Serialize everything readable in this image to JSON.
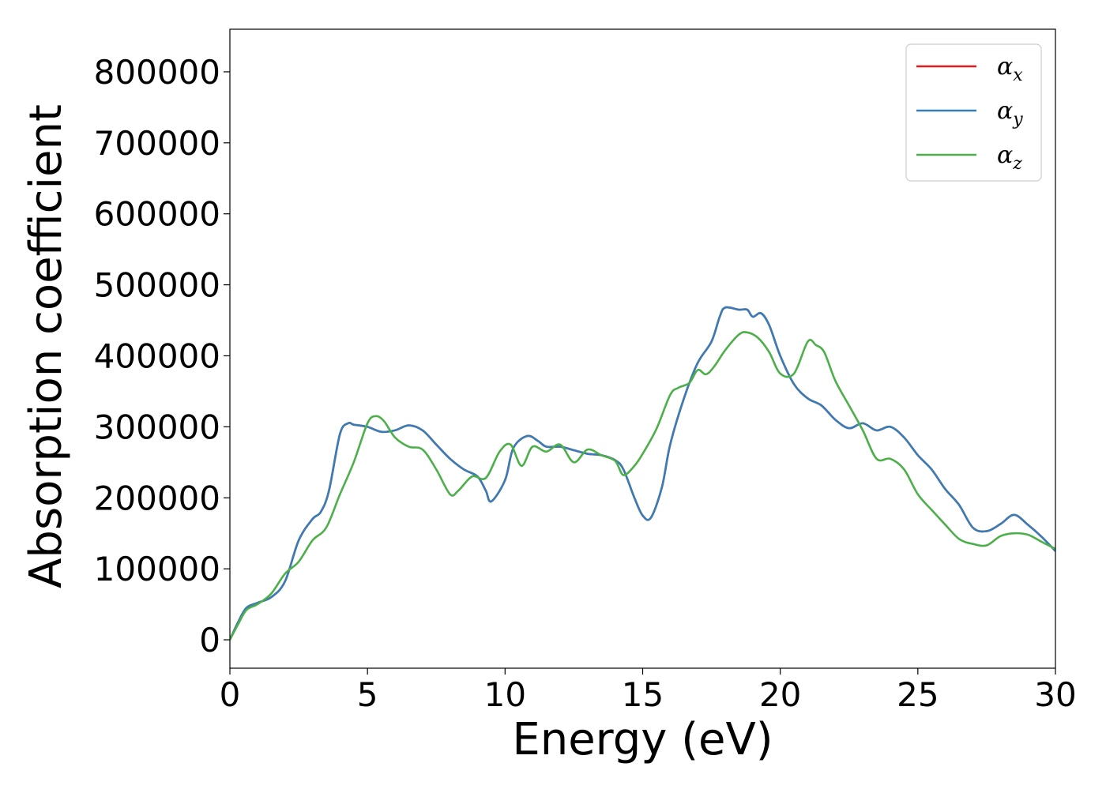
{
  "chart_data": {
    "type": "line",
    "title": "",
    "xlabel": "Energy (eV)",
    "ylabel": "Absorption coefficient",
    "xlim": [
      0,
      30
    ],
    "ylim": [
      -40000,
      860000
    ],
    "xticks": [
      0,
      5,
      10,
      15,
      20,
      25,
      30
    ],
    "yticks": [
      0,
      100000,
      200000,
      300000,
      400000,
      500000,
      600000,
      700000,
      800000
    ],
    "grid": false,
    "legend_position": "top-right",
    "series": [
      {
        "name": "α_x",
        "legend_main": "α",
        "legend_sub": "x",
        "color": "#e41a1c",
        "x": [
          0,
          0.3,
          0.6,
          1,
          1.5,
          2,
          2.5,
          3,
          3.3,
          3.6,
          4,
          4.3,
          4.5,
          5,
          5.5,
          6,
          6.5,
          7,
          7.5,
          8,
          8.5,
          9,
          9.3,
          9.5,
          10,
          10.3,
          10.8,
          11.2,
          11.5,
          12,
          12.5,
          13,
          13.5,
          14,
          14.3,
          14.7,
          15,
          15.3,
          15.7,
          16,
          16.5,
          17,
          17.5,
          17.8,
          18,
          18.5,
          18.8,
          19,
          19.3,
          19.6,
          20,
          20.5,
          21,
          21.5,
          22,
          22.5,
          23,
          23.5,
          24,
          24.5,
          25,
          25.5,
          26,
          26.5,
          27,
          27.5,
          28,
          28.5,
          29,
          29.5,
          30
        ],
        "y": [
          0,
          25000,
          45000,
          52000,
          60000,
          82000,
          140000,
          170000,
          180000,
          210000,
          290000,
          305000,
          303000,
          300000,
          293000,
          295000,
          302000,
          295000,
          275000,
          255000,
          240000,
          230000,
          210000,
          195000,
          225000,
          270000,
          287000,
          280000,
          272000,
          272000,
          267000,
          262000,
          260000,
          253000,
          240000,
          200000,
          175000,
          172000,
          215000,
          275000,
          340000,
          390000,
          420000,
          455000,
          468000,
          465000,
          465000,
          455000,
          460000,
          443000,
          400000,
          360000,
          340000,
          330000,
          310000,
          298000,
          305000,
          295000,
          300000,
          285000,
          260000,
          240000,
          212000,
          190000,
          158000,
          153000,
          163000,
          176000,
          162000,
          145000,
          125000
        ]
      },
      {
        "name": "α_y",
        "legend_main": "α",
        "legend_sub": "y",
        "color": "#377eb8",
        "x": [
          0,
          0.3,
          0.6,
          1,
          1.5,
          2,
          2.5,
          3,
          3.3,
          3.6,
          4,
          4.3,
          4.5,
          5,
          5.5,
          6,
          6.5,
          7,
          7.5,
          8,
          8.5,
          9,
          9.3,
          9.5,
          10,
          10.3,
          10.8,
          11.2,
          11.5,
          12,
          12.5,
          13,
          13.5,
          14,
          14.3,
          14.7,
          15,
          15.3,
          15.7,
          16,
          16.5,
          17,
          17.5,
          17.8,
          18,
          18.5,
          18.8,
          19,
          19.3,
          19.6,
          20,
          20.5,
          21,
          21.5,
          22,
          22.5,
          23,
          23.5,
          24,
          24.5,
          25,
          25.5,
          26,
          26.5,
          27,
          27.5,
          28,
          28.5,
          29,
          29.5,
          30
        ],
        "y": [
          0,
          25000,
          45000,
          52000,
          60000,
          82000,
          140000,
          170000,
          180000,
          210000,
          290000,
          305000,
          303000,
          300000,
          293000,
          295000,
          302000,
          295000,
          275000,
          255000,
          240000,
          230000,
          210000,
          195000,
          225000,
          270000,
          287000,
          280000,
          272000,
          272000,
          267000,
          262000,
          260000,
          253000,
          240000,
          200000,
          175000,
          172000,
          215000,
          275000,
          340000,
          390000,
          420000,
          455000,
          468000,
          465000,
          465000,
          455000,
          460000,
          443000,
          400000,
          360000,
          340000,
          330000,
          310000,
          298000,
          305000,
          295000,
          300000,
          285000,
          260000,
          240000,
          212000,
          190000,
          158000,
          153000,
          163000,
          176000,
          162000,
          145000,
          125000
        ]
      },
      {
        "name": "α_z",
        "legend_main": "α",
        "legend_sub": "z",
        "color": "#4daf4a",
        "x": [
          0,
          0.3,
          0.6,
          1,
          1.5,
          2,
          2.5,
          3,
          3.5,
          4,
          4.5,
          5,
          5.3,
          5.6,
          6,
          6.5,
          7,
          7.5,
          8,
          8.3,
          8.8,
          9.3,
          9.8,
          10.2,
          10.6,
          11,
          11.5,
          12,
          12.5,
          13,
          13.5,
          14,
          14.3,
          14.7,
          15,
          15.5,
          16,
          16.3,
          16.7,
          17,
          17.3,
          17.6,
          18,
          18.5,
          18.8,
          19.2,
          19.6,
          20,
          20.5,
          21,
          21.3,
          21.6,
          22,
          22.5,
          23,
          23.5,
          24,
          24.5,
          25,
          25.5,
          26,
          26.5,
          27,
          27.5,
          28,
          28.5,
          29,
          29.5,
          30
        ],
        "y": [
          0,
          22000,
          42000,
          50000,
          65000,
          93000,
          110000,
          140000,
          158000,
          205000,
          250000,
          305000,
          315000,
          308000,
          285000,
          272000,
          268000,
          240000,
          205000,
          210000,
          230000,
          228000,
          265000,
          275000,
          245000,
          272000,
          265000,
          275000,
          250000,
          268000,
          260000,
          252000,
          232000,
          245000,
          262000,
          297000,
          345000,
          355000,
          362000,
          380000,
          374000,
          385000,
          408000,
          430000,
          433000,
          425000,
          405000,
          375000,
          375000,
          420000,
          415000,
          405000,
          365000,
          330000,
          295000,
          255000,
          255000,
          240000,
          205000,
          183000,
          162000,
          142000,
          135000,
          133000,
          146000,
          150000,
          148000,
          138000,
          128000
        ]
      }
    ]
  }
}
